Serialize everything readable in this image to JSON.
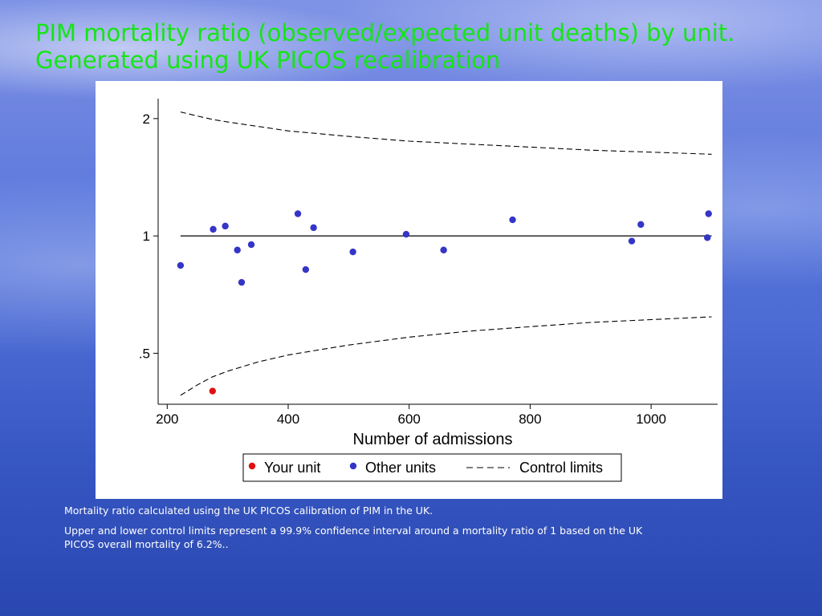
{
  "slide": {
    "title": "PIM mortality ratio (observed/expected unit deaths) by unit.  Generated using UK PICOS recalibration",
    "notes": [
      "Mortality ratio calculated using the UK PICOS calibration of PIM in the UK.",
      "Upper and lower control limits represent a 99.9% confidence interval around a mortality ratio of 1 based on the UK PICOS overall mortality of 6.2%.."
    ]
  },
  "chart_data": {
    "type": "scatter",
    "title": "",
    "xlabel": "Number of admissions",
    "ylabel": "",
    "xlim": [
      185,
      1110
    ],
    "ylim": [
      0.37,
      2.25
    ],
    "y_scale": "log",
    "x_ticks": [
      200,
      400,
      600,
      800,
      1000
    ],
    "x_tick_labels": [
      "200",
      "400",
      "600",
      "800",
      "1000"
    ],
    "y_ticks": [
      0.5,
      1,
      2
    ],
    "y_tick_labels": [
      ".5",
      "1",
      "2"
    ],
    "grid": false,
    "legend_position": "bottom",
    "reference_line": {
      "y": 1,
      "x_range": [
        222,
        1100
      ]
    },
    "series": [
      {
        "name": "Your unit",
        "kind": "scatter",
        "color": "#e01010",
        "points": [
          {
            "x": 275,
            "y": 0.4
          }
        ]
      },
      {
        "name": "Other units",
        "kind": "scatter",
        "color": "#3535c8",
        "points": [
          {
            "x": 222,
            "y": 0.84
          },
          {
            "x": 276,
            "y": 1.04
          },
          {
            "x": 296,
            "y": 1.06
          },
          {
            "x": 316,
            "y": 0.92
          },
          {
            "x": 323,
            "y": 0.76
          },
          {
            "x": 339,
            "y": 0.95
          },
          {
            "x": 416,
            "y": 1.14
          },
          {
            "x": 429,
            "y": 0.82
          },
          {
            "x": 442,
            "y": 1.05
          },
          {
            "x": 507,
            "y": 0.91
          },
          {
            "x": 595,
            "y": 1.01
          },
          {
            "x": 657,
            "y": 0.92
          },
          {
            "x": 771,
            "y": 1.1
          },
          {
            "x": 968,
            "y": 0.97
          },
          {
            "x": 983,
            "y": 1.07
          },
          {
            "x": 1093,
            "y": 0.99
          },
          {
            "x": 1095,
            "y": 1.14
          }
        ]
      },
      {
        "name": "Control limits",
        "kind": "line",
        "dash": true,
        "color": "#000000",
        "upper": [
          {
            "x": 222,
            "y": 2.08
          },
          {
            "x": 250,
            "y": 2.03
          },
          {
            "x": 275,
            "y": 1.99
          },
          {
            "x": 300,
            "y": 1.96
          },
          {
            "x": 350,
            "y": 1.91
          },
          {
            "x": 400,
            "y": 1.86
          },
          {
            "x": 450,
            "y": 1.83
          },
          {
            "x": 500,
            "y": 1.8
          },
          {
            "x": 600,
            "y": 1.75
          },
          {
            "x": 700,
            "y": 1.72
          },
          {
            "x": 800,
            "y": 1.69
          },
          {
            "x": 900,
            "y": 1.66
          },
          {
            "x": 1000,
            "y": 1.64
          },
          {
            "x": 1100,
            "y": 1.62
          }
        ],
        "lower": [
          {
            "x": 222,
            "y": 0.39
          },
          {
            "x": 250,
            "y": 0.415
          },
          {
            "x": 275,
            "y": 0.435
          },
          {
            "x": 300,
            "y": 0.45
          },
          {
            "x": 350,
            "y": 0.475
          },
          {
            "x": 400,
            "y": 0.495
          },
          {
            "x": 450,
            "y": 0.51
          },
          {
            "x": 500,
            "y": 0.525
          },
          {
            "x": 600,
            "y": 0.55
          },
          {
            "x": 700,
            "y": 0.57
          },
          {
            "x": 800,
            "y": 0.585
          },
          {
            "x": 900,
            "y": 0.6
          },
          {
            "x": 1000,
            "y": 0.61
          },
          {
            "x": 1100,
            "y": 0.62
          }
        ]
      }
    ],
    "legend": [
      {
        "label": "Your unit",
        "marker": "dot",
        "color": "#e01010"
      },
      {
        "label": "Other units",
        "marker": "dot",
        "color": "#3535c8"
      },
      {
        "label": "Control limits",
        "marker": "dash",
        "color": "#000000"
      }
    ]
  }
}
